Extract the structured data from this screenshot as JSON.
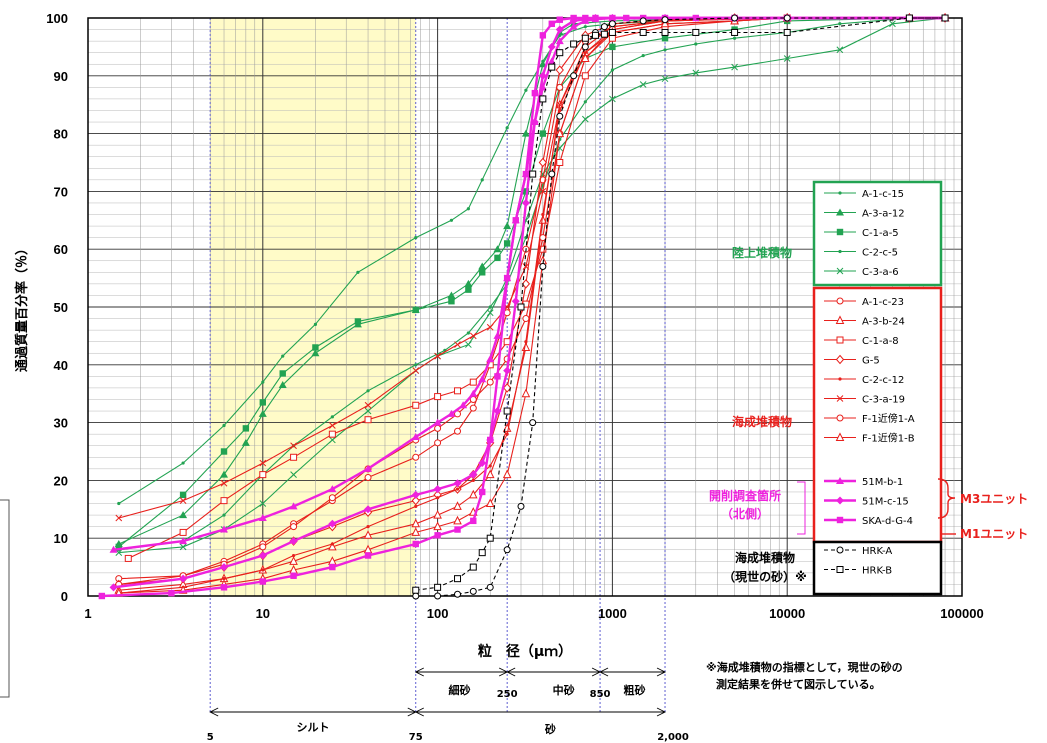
{
  "chart_data": {
    "type": "line",
    "title": "",
    "xlabel": "粒　径（μｍ）",
    "ylabel": "通過質量百分率（％）",
    "x_scale": "log",
    "xlim": [
      1,
      100000
    ],
    "ylim": [
      0,
      100
    ],
    "x_ticks": [
      "1",
      "10",
      "100",
      "1000",
      "10000",
      "100000"
    ],
    "y_ticks": [
      "0",
      "10",
      "20",
      "30",
      "40",
      "50",
      "60",
      "70",
      "80",
      "90",
      "100"
    ],
    "grid": true,
    "highlight_band": {
      "from": 5,
      "to": 75,
      "color": "#FFFBC8"
    },
    "ref_lines_x": [
      5,
      75,
      250,
      850,
      2000
    ],
    "legend_groups": [
      {
        "label": "陸上堆積物",
        "color": "#22A352",
        "series": [
          "A-1-c-15",
          "A-3-a-12",
          "C-1-a-5",
          "C-2-c-5",
          "C-3-a-6"
        ]
      },
      {
        "label": "海成堆積物",
        "color": "#E8201C",
        "series": [
          "A-1-c-23",
          "A-3-b-24",
          "C-1-a-8",
          "G-5",
          "C-2-c-12",
          "C-3-a-19",
          "F-1近傍1-A",
          "F-1近傍1-B"
        ]
      },
      {
        "label_lines": [
          "開削調査箇所",
          "（北側）"
        ],
        "color": "#EE22DD",
        "series": [
          "51M-b-1",
          "51M-c-15",
          "SKA-d-G-4"
        ]
      },
      {
        "label_lines": [
          "海成堆積物",
          "（現世の砂）※"
        ],
        "color": "#000000",
        "series": [
          "HRK-A",
          "HRK-B"
        ]
      }
    ],
    "unit_labels": {
      "m3": "M3ユニット",
      "m1": "M1ユニット"
    },
    "series": [
      {
        "name": "A-1-c-15",
        "color": "#22A352",
        "marker": "dot",
        "dash": false,
        "x": [
          1.5,
          3.5,
          6,
          10,
          13,
          20,
          35,
          75,
          120,
          150,
          180,
          250,
          320,
          400,
          500,
          700,
          1000,
          2000,
          5000,
          10000,
          50000,
          80000
        ],
        "y": [
          16,
          23,
          29.5,
          37,
          41.5,
          47,
          56,
          62,
          65,
          67,
          72,
          81,
          87.5,
          92.5,
          97,
          98.5,
          99,
          99.5,
          99.8,
          100,
          100,
          100
        ]
      },
      {
        "name": "A-3-a-12",
        "color": "#22A352",
        "marker": "triangle",
        "dash": false,
        "x": [
          1.5,
          3.5,
          6,
          8,
          10,
          13,
          20,
          35,
          75,
          120,
          150,
          180,
          220,
          250,
          320,
          400,
          500,
          600,
          1000,
          2000,
          5000,
          10000,
          50000,
          80000
        ],
        "y": [
          9,
          14,
          21,
          26.5,
          31.5,
          36.5,
          42,
          47,
          49.5,
          52,
          54,
          57,
          60,
          64,
          80,
          92,
          97.5,
          99,
          99.5,
          99.7,
          99.8,
          100,
          100,
          100
        ]
      },
      {
        "name": "C-1-a-5",
        "color": "#22A352",
        "marker": "square",
        "dash": false,
        "x": [
          1.5,
          3.5,
          6,
          8,
          10,
          13,
          20,
          35,
          75,
          120,
          150,
          180,
          220,
          250,
          320,
          400,
          500,
          700,
          1000,
          2000,
          5000,
          10000,
          50000,
          80000
        ],
        "y": [
          8.5,
          17.5,
          25,
          29,
          33.5,
          38.5,
          43,
          47.5,
          49.5,
          51,
          53,
          56,
          58.5,
          61,
          70,
          80,
          88,
          93,
          95,
          96.5,
          98,
          99.5,
          100,
          100
        ]
      },
      {
        "name": "C-2-c-5",
        "color": "#22A352",
        "marker": "dot",
        "dash": false,
        "x": [
          1.5,
          3.5,
          6,
          10,
          15,
          25,
          40,
          75,
          110,
          150,
          200,
          250,
          320,
          400,
          500,
          700,
          1000,
          1500,
          2000,
          3000,
          5000,
          10000,
          20000,
          50000,
          80000
        ],
        "y": [
          8,
          9.5,
          14,
          21,
          26,
          31,
          35.5,
          40,
          42.5,
          45.5,
          50,
          54,
          62,
          71,
          79,
          85.5,
          91,
          93.5,
          94.5,
          95.5,
          96.5,
          97.5,
          99,
          100,
          100
        ]
      },
      {
        "name": "C-3-a-6",
        "color": "#22A352",
        "marker": "x",
        "dash": false,
        "x": [
          1.5,
          3.5,
          6,
          10,
          15,
          25,
          40,
          75,
          100,
          150,
          200,
          250,
          320,
          400,
          500,
          700,
          1000,
          1500,
          2000,
          3000,
          5000,
          10000,
          20000,
          40000,
          80000
        ],
        "y": [
          7.5,
          8.5,
          11.5,
          16,
          21,
          27,
          32,
          39,
          41.5,
          43.5,
          49,
          55,
          65,
          73,
          77.5,
          82.5,
          86,
          88.5,
          89.5,
          90.5,
          91.5,
          93,
          94.5,
          99,
          100
        ]
      },
      {
        "name": "A-1-c-23",
        "color": "#E8201C",
        "marker": "circle",
        "dash": false,
        "x": [
          1.5,
          3.5,
          6,
          10,
          15,
          25,
          40,
          75,
          100,
          130,
          160,
          200,
          250,
          320,
          400,
          500,
          700,
          1000,
          2000,
          5000,
          10000,
          50000,
          80000
        ],
        "y": [
          3,
          3.5,
          6,
          9,
          12.5,
          16.5,
          20.5,
          24,
          26.5,
          28.5,
          32.5,
          40,
          49,
          60,
          72,
          88,
          96,
          98.5,
          99.5,
          99.8,
          100,
          100,
          100
        ]
      },
      {
        "name": "A-3-b-24",
        "color": "#E8201C",
        "marker": "triangle-open",
        "dash": false,
        "x": [
          1.5,
          3.5,
          6,
          10,
          15,
          25,
          40,
          75,
          100,
          130,
          160,
          200,
          250,
          320,
          400,
          500,
          700,
          1000,
          2000,
          5000,
          10000,
          50000,
          80000
        ],
        "y": [
          1,
          2,
          3,
          4.5,
          6,
          8.5,
          10.5,
          12.5,
          14,
          15.5,
          17.5,
          21,
          29,
          43,
          65,
          85,
          94,
          97.5,
          99,
          99.5,
          100,
          100,
          100
        ]
      },
      {
        "name": "C-1-a-8",
        "color": "#E8201C",
        "marker": "square-open",
        "dash": false,
        "x": [
          1.7,
          3.5,
          6,
          10,
          15,
          25,
          40,
          75,
          100,
          130,
          160,
          200,
          250,
          320,
          400,
          500,
          700,
          1000,
          2000,
          5000,
          10000,
          50000,
          80000
        ],
        "y": [
          6.5,
          11,
          16.5,
          21,
          24,
          28,
          30.5,
          33,
          34.5,
          35.5,
          37,
          40,
          44,
          50.5,
          60,
          75,
          90,
          96.5,
          98.5,
          99.5,
          100,
          100,
          100
        ]
      },
      {
        "name": "G-5",
        "color": "#E8201C",
        "marker": "diamond-open",
        "dash": false,
        "x": [
          1.5,
          3.5,
          6,
          10,
          15,
          25,
          40,
          75,
          100,
          130,
          160,
          200,
          250,
          320,
          400,
          500,
          700,
          1000,
          2000,
          5000,
          10000,
          50000,
          80000
        ],
        "y": [
          2,
          3,
          5,
          7,
          9.5,
          12,
          14.5,
          16.5,
          17.5,
          18.5,
          21,
          26.5,
          36,
          54,
          75,
          91,
          97,
          99,
          99.7,
          100,
          100,
          100,
          100
        ]
      },
      {
        "name": "C-2-c-12",
        "color": "#E8201C",
        "marker": "dot",
        "dash": false,
        "x": [
          1.5,
          3.5,
          6,
          10,
          15,
          25,
          40,
          75,
          100,
          130,
          160,
          200,
          250,
          320,
          400,
          500,
          700,
          1000,
          2000,
          5000,
          10000,
          50000,
          80000
        ],
        "y": [
          0.5,
          1.5,
          3,
          4.5,
          7,
          9,
          12,
          15.5,
          17,
          18.5,
          20,
          22.5,
          28,
          44,
          66,
          84,
          94,
          98,
          99.5,
          99.8,
          100,
          100,
          100
        ]
      },
      {
        "name": "C-3-a-19",
        "color": "#E8201C",
        "marker": "x",
        "dash": false,
        "x": [
          1.5,
          3.5,
          6,
          10,
          15,
          25,
          40,
          75,
          100,
          130,
          160,
          200,
          250,
          320,
          400,
          500,
          700,
          1000,
          2000,
          5000,
          10000,
          50000,
          80000
        ],
        "y": [
          13.5,
          16.5,
          19.5,
          23,
          26,
          29.5,
          33,
          39,
          41.5,
          43.5,
          45,
          46.5,
          50,
          57,
          70,
          85,
          95,
          98.5,
          99.5,
          100,
          100,
          100,
          100
        ]
      },
      {
        "name": "F-1近傍1-A",
        "color": "#E8201C",
        "marker": "circle",
        "dash": false,
        "x": [
          1.5,
          3.5,
          6,
          10,
          15,
          25,
          40,
          75,
          100,
          130,
          160,
          200,
          250,
          320,
          400,
          500,
          700,
          1000,
          2000,
          5000,
          10000,
          50000,
          80000
        ],
        "y": [
          2,
          3.5,
          5.5,
          8.5,
          12,
          17,
          22,
          27,
          29,
          31.5,
          34,
          37,
          41,
          48,
          62,
          80,
          93,
          98,
          99.5,
          100,
          100,
          100,
          100
        ]
      },
      {
        "name": "F-1近傍1-B",
        "color": "#E8201C",
        "marker": "triangle-open",
        "dash": false,
        "x": [
          1.5,
          3.5,
          6,
          10,
          15,
          25,
          40,
          75,
          100,
          130,
          160,
          200,
          250,
          320,
          400,
          500,
          700,
          1000,
          2000,
          5000,
          10000,
          50000,
          80000
        ],
        "y": [
          0.5,
          1,
          2,
          3,
          4.5,
          6,
          8,
          11,
          12,
          13,
          14.5,
          16,
          21,
          35,
          58,
          80,
          93,
          97.5,
          99,
          99.5,
          100,
          100,
          100
        ]
      },
      {
        "name": "51M-b-1",
        "color": "#EE22DD",
        "marker": "triangle",
        "dash": false,
        "x": [
          1.4,
          3.5,
          6,
          10,
          15,
          25,
          40,
          75,
          100,
          120,
          140,
          160,
          180,
          200,
          220,
          250,
          280,
          320,
          360,
          400,
          450,
          500,
          600,
          700,
          800,
          1000,
          2000,
          5000,
          10000,
          50000,
          80000
        ],
        "y": [
          8,
          9.5,
          11.5,
          13.5,
          15.5,
          18.5,
          22,
          27.5,
          30,
          31.5,
          33,
          35,
          37.5,
          41,
          45,
          55,
          65,
          73,
          82,
          88,
          92.5,
          96,
          98.5,
          99.5,
          99.8,
          100,
          100,
          100,
          100,
          100,
          100
        ]
      },
      {
        "name": "51M-c-15",
        "color": "#EE22DD",
        "marker": "diamond",
        "dash": false,
        "x": [
          1.4,
          3.5,
          6,
          10,
          15,
          25,
          40,
          75,
          100,
          130,
          160,
          180,
          200,
          220,
          250,
          280,
          320,
          360,
          400,
          450,
          500,
          600,
          700,
          800,
          1000,
          2000,
          5000,
          10000,
          50000,
          80000
        ],
        "y": [
          1.5,
          3,
          5,
          7,
          9.5,
          12.5,
          15,
          17.5,
          18.5,
          19.5,
          21,
          23,
          27,
          32,
          39,
          51,
          68,
          82,
          90,
          95,
          98,
          99.5,
          99.8,
          100,
          100,
          100,
          100,
          100,
          100,
          100
        ]
      },
      {
        "name": "SKA-d-G-4",
        "color": "#EE22DD",
        "marker": "square",
        "dash": false,
        "x": [
          1.2,
          3,
          6,
          10,
          15,
          25,
          40,
          75,
          100,
          130,
          160,
          180,
          200,
          220,
          250,
          280,
          320,
          360,
          400,
          450,
          500,
          600,
          700,
          800,
          1000,
          1200,
          1500,
          2000,
          3000,
          5000,
          10000,
          50000,
          80000
        ],
        "y": [
          0,
          0.5,
          1.5,
          2.5,
          3.5,
          5,
          7,
          9,
          10.5,
          11.5,
          13,
          18,
          27,
          38,
          55,
          65,
          73,
          87,
          97,
          99,
          99.7,
          100,
          100,
          100,
          100,
          100,
          100,
          100,
          100,
          100,
          100,
          100,
          100
        ]
      },
      {
        "name": "HRK-A",
        "color": "#000000",
        "marker": "circle",
        "dash": true,
        "x": [
          75,
          100,
          130,
          160,
          200,
          250,
          300,
          350,
          400,
          450,
          500,
          600,
          700,
          800,
          900,
          1000,
          1500,
          2000,
          5000,
          10000,
          50000,
          80000
        ],
        "y": [
          0,
          0,
          0.3,
          0.8,
          1.5,
          8,
          15.5,
          30,
          57,
          73,
          83,
          90,
          95,
          97.5,
          98.5,
          99,
          99.5,
          99.7,
          100,
          100,
          100,
          100
        ]
      },
      {
        "name": "HRK-B",
        "color": "#000000",
        "marker": "square-open",
        "dash": true,
        "x": [
          75,
          100,
          130,
          160,
          180,
          200,
          250,
          300,
          350,
          400,
          450,
          500,
          600,
          700,
          800,
          900,
          1000,
          1500,
          2000,
          3000,
          5000,
          10000,
          50000,
          80000
        ],
        "y": [
          1,
          1.5,
          3,
          5,
          7.5,
          10,
          32,
          50,
          73,
          86,
          91.5,
          94,
          95.5,
          96.5,
          97,
          97.2,
          97.5,
          97.5,
          97.5,
          97.5,
          97.5,
          97.5,
          100,
          100
        ]
      }
    ]
  },
  "size_classes": {
    "boundaries": [
      "5",
      "75",
      "250",
      "850",
      "2,000"
    ],
    "silt": "シルト",
    "sand": "砂",
    "fine_sand": "細砂",
    "medium_sand": "中砂",
    "coarse_sand": "粗砂"
  },
  "note": [
    "※海成堆積物の指標として，現世の砂の",
    "測定結果を併せて図示している。"
  ]
}
